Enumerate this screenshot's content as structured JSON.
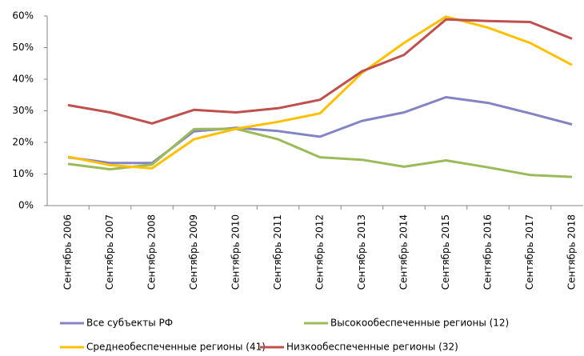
{
  "chart_data": {
    "type": "line",
    "categories": [
      "Сентябрь 2006",
      "Сентябрь 2007",
      "Сентябрь 2008",
      "Сентябрь 2009",
      "Сентябрь 2010",
      "Сентябрь 2011",
      "Сентябрь 2012",
      "Сентябрь 2013",
      "Сентябрь 2014",
      "Сентябрь 2015",
      "Сентябрь 2016",
      "Сентябрь 2017",
      "Сентябрь 2018"
    ],
    "series": [
      {
        "name": "Все субъекты РФ",
        "color": "#8484c4",
        "values": [
          15.3,
          13.5,
          13.5,
          23.5,
          24.6,
          23.6,
          21.8,
          26.8,
          29.5,
          34.3,
          32.5,
          29.2,
          25.7
        ]
      },
      {
        "name": "Высокообеспеченные регионы (12)",
        "color": "#9bbb59",
        "values": [
          13.2,
          11.5,
          13.0,
          24.2,
          24.3,
          21.0,
          15.3,
          14.5,
          12.3,
          14.3,
          12.1,
          9.7,
          9.1
        ]
      },
      {
        "name": "Среднеобеспеченные регионы (41)",
        "color": "#ffc000",
        "values": [
          15.5,
          12.8,
          11.8,
          21.0,
          24.3,
          26.5,
          29.2,
          42.0,
          51.5,
          59.8,
          56.3,
          51.5,
          44.5
        ]
      },
      {
        "name": "Низкообеспеченные регионы (32)",
        "color": "#c0504d",
        "values": [
          31.8,
          29.5,
          26.0,
          30.3,
          29.5,
          30.8,
          33.5,
          42.5,
          47.7,
          58.9,
          58.4,
          58.1,
          52.8
        ]
      }
    ],
    "ylim": [
      0,
      60
    ],
    "yticks": [
      {
        "value": 0,
        "label": "0%"
      },
      {
        "value": 10,
        "label": "10%"
      },
      {
        "value": 20,
        "label": "20%"
      },
      {
        "value": 30,
        "label": "30%"
      },
      {
        "value": 40,
        "label": "40%"
      },
      {
        "value": 50,
        "label": "50%"
      },
      {
        "value": 60,
        "label": "60%"
      }
    ],
    "grid": false
  }
}
